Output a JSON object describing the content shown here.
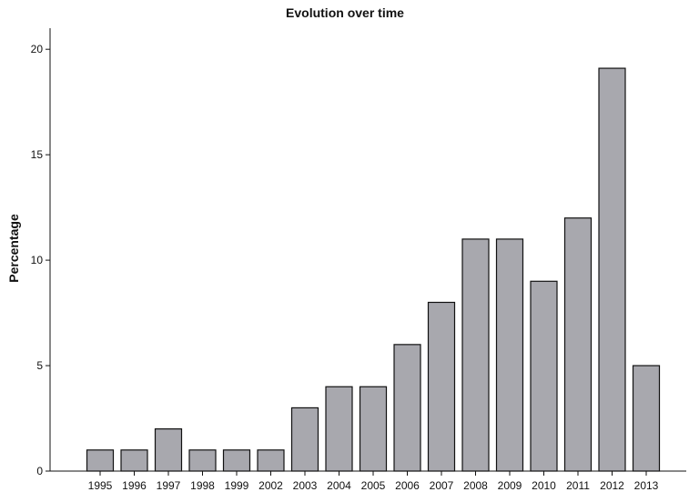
{
  "chart_data": {
    "type": "bar",
    "title": "Evolution over time",
    "xlabel": "",
    "ylabel": "Percentage",
    "categories": [
      "1995",
      "1996",
      "1997",
      "1998",
      "1999",
      "2002",
      "2003",
      "2004",
      "2005",
      "2006",
      "2007",
      "2008",
      "2009",
      "2010",
      "2011",
      "2012",
      "2013"
    ],
    "values": [
      1.0,
      1.0,
      2.0,
      1.0,
      1.0,
      1.0,
      3.0,
      4.0,
      4.0,
      6.0,
      8.0,
      11.0,
      11.0,
      9.0,
      12.0,
      19.1,
      5.0
    ],
    "ylim": [
      0,
      21
    ],
    "yticks": [
      0,
      5,
      10,
      15,
      20
    ],
    "ytick_labels": [
      "0",
      "5",
      "10",
      "15",
      "20"
    ],
    "grid": false,
    "bar_color": "#a8a8ae",
    "edge_color": "#111111"
  }
}
